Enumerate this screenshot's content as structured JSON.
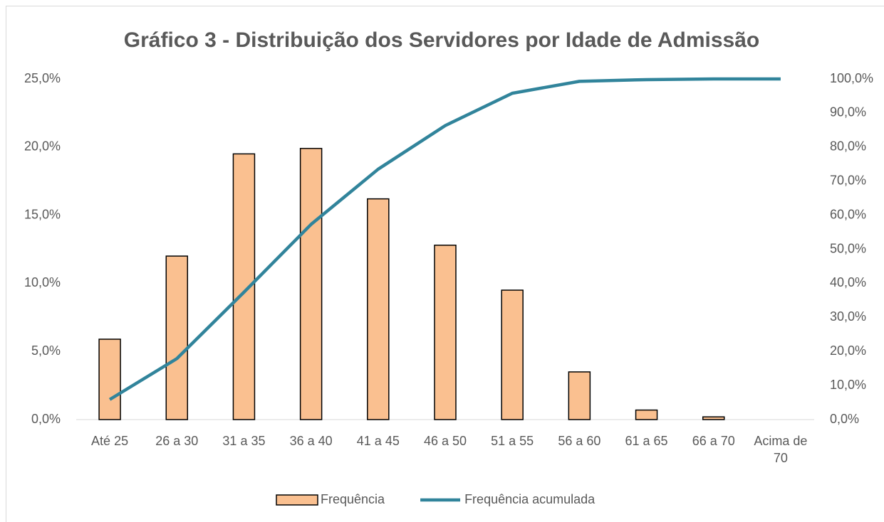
{
  "chart_data": {
    "type": "bar_line",
    "title": "Gráfico 3 - Distribuição dos Servidores por Idade de Admissão",
    "categories": [
      "Até 25",
      "26 a 30",
      "31 a 35",
      "36 a 40",
      "41 a 45",
      "46 a 50",
      "51 a 55",
      "56 a 60",
      "61 a 65",
      "66 a 70",
      "Acima de 70"
    ],
    "series": [
      {
        "name": "Frequência",
        "type": "bar",
        "color": "#fac090",
        "values": [
          5.9,
          12.0,
          19.5,
          19.9,
          16.2,
          12.8,
          9.5,
          3.5,
          0.7,
          0.2,
          0
        ]
      },
      {
        "name": "Frequência acumulada",
        "type": "line",
        "axis": "y2",
        "color": "#31849b",
        "values": [
          5.9,
          17.9,
          37.4,
          57.3,
          73.5,
          86.3,
          95.8,
          99.3,
          99.8,
          100.0,
          100.0
        ]
      }
    ],
    "ylim": [
      0,
      25
    ],
    "yticks": [
      {
        "value": 0,
        "label": "0,0%"
      },
      {
        "value": 5,
        "label": "5,0%"
      },
      {
        "value": 10,
        "label": "10,0%"
      },
      {
        "value": 15,
        "label": "15,0%"
      },
      {
        "value": 20,
        "label": "20,0%"
      },
      {
        "value": 25,
        "label": "25,0%"
      }
    ],
    "y2lim": [
      0,
      100
    ],
    "y2ticks": [
      {
        "value": 0,
        "label": "0,0%"
      },
      {
        "value": 10,
        "label": "10,0%"
      },
      {
        "value": 20,
        "label": "20,0%"
      },
      {
        "value": 30,
        "label": "30,0%"
      },
      {
        "value": 40,
        "label": "40,0%"
      },
      {
        "value": 50,
        "label": "50,0%"
      },
      {
        "value": 60,
        "label": "60,0%"
      },
      {
        "value": 70,
        "label": "70,0%"
      },
      {
        "value": 80,
        "label": "80,0%"
      },
      {
        "value": 90,
        "label": "90,0%"
      },
      {
        "value": 100,
        "label": "100,0%"
      }
    ],
    "grid": false,
    "legend": "bottom"
  }
}
